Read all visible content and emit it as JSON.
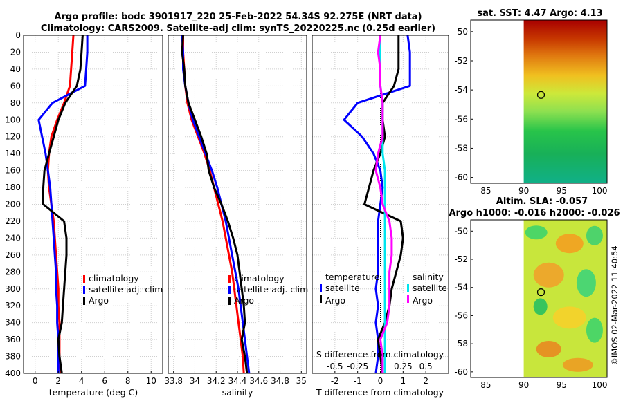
{
  "title": {
    "line1": "Argo profile: bodc 3901917_220 25-Feb-2022 54.34S 92.275E (NRT data)",
    "line2": "Climatology: CARS2009. Satellite-adj clim: synTS_20220225.nc (0.25d earlier)"
  },
  "colors": {
    "climatology": "#ff0000",
    "satellite": "#0000ff",
    "argo": "#000000",
    "sal_satellite": "#00e5ee",
    "sal_argo": "#ff00ff"
  },
  "chart_data": [
    {
      "id": "temperature",
      "type": "line",
      "xlabel": "temperature (deg C)",
      "xlim": [
        -1,
        11
      ],
      "ylim": [
        0,
        400
      ],
      "y_reversed": true,
      "xticks": [
        0,
        2,
        4,
        6,
        8,
        10
      ],
      "xtick_labels": [
        "0",
        "2",
        "4",
        "6",
        "8",
        "10"
      ],
      "yticks": [
        0,
        20,
        40,
        60,
        80,
        100,
        120,
        140,
        160,
        180,
        200,
        220,
        240,
        260,
        280,
        300,
        320,
        340,
        360,
        380,
        400
      ],
      "ytick_labels": [
        "0",
        "20",
        "40",
        "60",
        "80",
        "100",
        "120",
        "140",
        "160",
        "180",
        "200",
        "220",
        "240",
        "260",
        "280",
        "300",
        "320",
        "340",
        "360",
        "380",
        "400"
      ],
      "grid": true,
      "legend": [
        "climatology",
        "satellite-adj. clim",
        "Argo"
      ],
      "series": [
        {
          "name": "climatology",
          "color": "#ff0000",
          "x": [
            3.3,
            3.2,
            3.1,
            3.0,
            2.5,
            1.9,
            1.4,
            1.2,
            1.1,
            1.2,
            1.4,
            1.6,
            1.7,
            1.8,
            1.9,
            2.0,
            2.0,
            2.1,
            2.1,
            2.1,
            2.2
          ],
          "y": [
            0,
            20,
            40,
            60,
            80,
            100,
            120,
            140,
            160,
            180,
            200,
            220,
            240,
            260,
            280,
            300,
            320,
            340,
            360,
            380,
            400
          ]
        },
        {
          "name": "satellite-adj. clim",
          "color": "#0000ff",
          "x": [
            4.5,
            4.5,
            4.4,
            4.3,
            1.5,
            0.3,
            0.6,
            0.9,
            1.1,
            1.3,
            1.4,
            1.5,
            1.6,
            1.7,
            1.8,
            1.8,
            1.9,
            1.9,
            2.0,
            2.0,
            2.0
          ],
          "y": [
            0,
            20,
            40,
            60,
            80,
            100,
            120,
            140,
            160,
            180,
            200,
            220,
            240,
            260,
            280,
            300,
            320,
            340,
            360,
            380,
            400
          ]
        },
        {
          "name": "Argo",
          "color": "#000000",
          "x": [
            4.1,
            4.0,
            3.9,
            3.6,
            2.6,
            2.0,
            1.6,
            1.2,
            0.8,
            0.7,
            0.7,
            2.5,
            2.7,
            2.7,
            2.6,
            2.5,
            2.4,
            2.3,
            2.0,
            2.1,
            2.3
          ],
          "y": [
            0,
            20,
            40,
            60,
            80,
            100,
            120,
            140,
            160,
            180,
            200,
            220,
            240,
            260,
            280,
            300,
            320,
            340,
            360,
            380,
            400
          ]
        }
      ]
    },
    {
      "id": "salinity",
      "type": "line",
      "xlabel": "salinity",
      "xlim": [
        33.75,
        35.05
      ],
      "ylim": [
        0,
        400
      ],
      "y_reversed": true,
      "xticks": [
        33.8,
        34,
        34.2,
        34.4,
        34.6,
        34.8,
        35
      ],
      "xtick_labels": [
        "33.8",
        "34",
        "34.2",
        "34.4",
        "34.6",
        "34.8",
        "35"
      ],
      "grid": true,
      "legend": [
        "climatology",
        "satellite-adj. clim",
        "Argo"
      ],
      "series": [
        {
          "name": "climatology",
          "color": "#ff0000",
          "x": [
            33.89,
            33.89,
            33.9,
            33.91,
            33.93,
            33.97,
            34.03,
            34.09,
            34.14,
            34.18,
            34.22,
            34.26,
            34.29,
            34.32,
            34.35,
            34.37,
            34.39,
            34.41,
            34.43,
            34.45,
            34.46
          ],
          "y": [
            0,
            20,
            40,
            60,
            80,
            100,
            120,
            140,
            160,
            180,
            200,
            220,
            240,
            260,
            280,
            300,
            320,
            340,
            360,
            380,
            400
          ]
        },
        {
          "name": "satellite-adj. clim",
          "color": "#0000ff",
          "x": [
            33.88,
            33.89,
            33.89,
            33.91,
            33.94,
            33.98,
            34.04,
            34.1,
            34.16,
            34.21,
            34.25,
            34.29,
            34.32,
            34.35,
            34.38,
            34.41,
            34.43,
            34.45,
            34.47,
            34.49,
            34.51
          ],
          "y": [
            0,
            20,
            40,
            60,
            80,
            100,
            120,
            140,
            160,
            180,
            200,
            220,
            240,
            260,
            280,
            300,
            320,
            340,
            360,
            380,
            400
          ]
        },
        {
          "name": "Argo",
          "color": "#000000",
          "x": [
            33.89,
            33.88,
            33.9,
            33.91,
            33.94,
            34.0,
            34.06,
            34.11,
            34.13,
            34.18,
            34.25,
            34.31,
            34.36,
            34.4,
            34.42,
            34.44,
            34.46,
            34.47,
            34.44,
            34.47,
            34.49
          ],
          "y": [
            0,
            20,
            40,
            60,
            80,
            100,
            120,
            140,
            160,
            180,
            200,
            220,
            240,
            260,
            280,
            300,
            320,
            340,
            360,
            380,
            400
          ]
        }
      ]
    },
    {
      "id": "difference",
      "type": "line",
      "xlabel": "T difference from climatology",
      "top_xlabel": "S difference from climatology",
      "xlim": [
        -3,
        3
      ],
      "ylim": [
        0,
        400
      ],
      "y_reversed": true,
      "xticks": [
        -2,
        -1,
        0,
        1,
        2
      ],
      "xtick_labels": [
        "-2",
        "-1",
        "0",
        "1",
        "2"
      ],
      "s_xticks": [
        -2,
        -1,
        1,
        2
      ],
      "s_xtick_labels": [
        "-0.5",
        "-0.25",
        "0.25",
        "0.5"
      ],
      "grid": true,
      "legend_t": [
        "temperature",
        "satellite",
        "Argo"
      ],
      "legend_s": [
        "salinity",
        "satellite",
        "Argo"
      ],
      "series": [
        {
          "name": "T satellite",
          "color": "#0000ff",
          "x": [
            1.2,
            1.3,
            1.3,
            1.3,
            -1.0,
            -1.6,
            -0.8,
            -0.3,
            0.0,
            0.1,
            0.0,
            -0.1,
            -0.1,
            -0.1,
            -0.1,
            -0.2,
            -0.1,
            -0.2,
            -0.1,
            -0.1,
            -0.2
          ],
          "y": [
            0,
            20,
            40,
            60,
            80,
            100,
            120,
            140,
            160,
            180,
            200,
            220,
            240,
            260,
            280,
            300,
            320,
            340,
            360,
            380,
            400
          ]
        },
        {
          "name": "T Argo",
          "color": "#000000",
          "x": [
            0.8,
            0.8,
            0.8,
            0.6,
            0.1,
            0.1,
            0.2,
            0.0,
            -0.3,
            -0.5,
            -0.7,
            0.9,
            1.0,
            0.9,
            0.7,
            0.5,
            0.4,
            0.2,
            -0.1,
            0.0,
            0.1
          ],
          "y": [
            0,
            20,
            40,
            60,
            80,
            100,
            120,
            140,
            160,
            180,
            200,
            220,
            240,
            260,
            280,
            300,
            320,
            340,
            360,
            380,
            400
          ]
        },
        {
          "name": "S satellite",
          "color": "#00e5ee",
          "x": [
            0.0,
            0.0,
            0.0,
            0.0,
            0.1,
            0.1,
            0.1,
            0.1,
            0.2,
            0.2,
            0.2,
            0.2,
            0.2,
            0.2,
            0.2,
            0.2,
            0.2,
            0.2,
            0.2,
            0.2,
            0.2
          ],
          "y": [
            0,
            20,
            40,
            60,
            80,
            100,
            120,
            140,
            160,
            180,
            200,
            220,
            240,
            260,
            280,
            300,
            320,
            340,
            360,
            380,
            400
          ]
        },
        {
          "name": "S Argo",
          "color": "#ff00ff",
          "x": [
            0.0,
            -0.1,
            0.0,
            0.0,
            0.1,
            0.1,
            0.1,
            -0.1,
            -0.2,
            0.0,
            0.1,
            0.4,
            0.5,
            0.5,
            0.4,
            0.4,
            0.4,
            0.3,
            0.0,
            0.1,
            0.1
          ],
          "y": [
            0,
            20,
            40,
            60,
            80,
            100,
            120,
            140,
            160,
            180,
            200,
            220,
            240,
            260,
            280,
            300,
            320,
            340,
            360,
            380,
            400
          ]
        }
      ]
    },
    {
      "id": "sst_map",
      "type": "heatmap",
      "title": "sat. SST: 4.47 Argo: 4.13",
      "xlim": [
        83,
        101
      ],
      "ylim": [
        -60.4,
        -49.2
      ],
      "xticks": [
        85,
        90,
        95,
        100
      ],
      "xtick_labels": [
        "85",
        "90",
        "95",
        "100"
      ],
      "yticks": [
        -50,
        -52,
        -54,
        -56,
        -58,
        -60
      ],
      "ytick_labels": [
        "-50",
        "-52",
        "-54",
        "-56",
        "-58",
        "-60"
      ],
      "marker": {
        "lon": 92.275,
        "lat": -54.34
      }
    },
    {
      "id": "sla_map",
      "type": "heatmap",
      "title": "Altim. SLA: -0.057",
      "subtitle": "Argo h1000: -0.016 h2000: -0.026",
      "xlim": [
        83,
        101
      ],
      "ylim": [
        -60.4,
        -49.2
      ],
      "xticks": [
        85,
        90,
        95,
        100
      ],
      "xtick_labels": [
        "85",
        "90",
        "95",
        "100"
      ],
      "yticks": [
        -50,
        -52,
        -54,
        -56,
        -58,
        -60
      ],
      "ytick_labels": [
        "-50",
        "-52",
        "-54",
        "-56",
        "-58",
        "-60"
      ],
      "marker": {
        "lon": 92.275,
        "lat": -54.34
      }
    }
  ],
  "watermark": "©IMOS 02-Mar-2022 11:40:54"
}
